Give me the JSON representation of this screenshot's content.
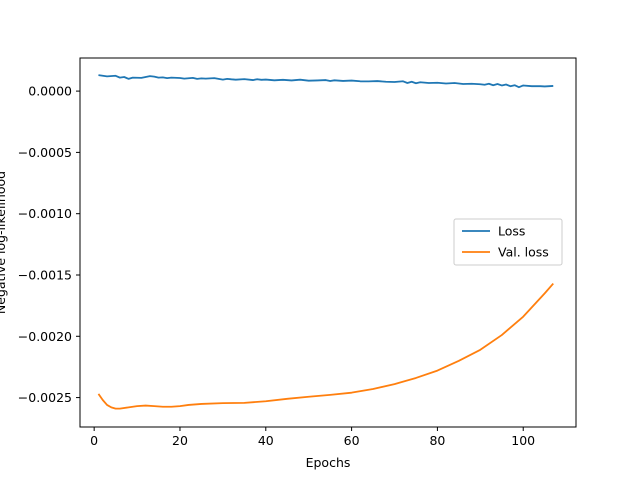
{
  "chart_data": {
    "type": "line",
    "title": "",
    "xlabel": "Epochs",
    "ylabel": "Negative log-likelihood",
    "xlim": [
      -3.3,
      112.3
    ],
    "ylim": [
      -0.00274,
      0.00027
    ],
    "xticks": [
      {
        "value": 0,
        "label": "0"
      },
      {
        "value": 20,
        "label": "20"
      },
      {
        "value": 40,
        "label": "40"
      },
      {
        "value": 60,
        "label": "60"
      },
      {
        "value": 80,
        "label": "80"
      },
      {
        "value": 100,
        "label": "100"
      }
    ],
    "yticks": [
      {
        "value": 0.0,
        "label": "0.0000"
      },
      {
        "value": -0.0005,
        "label": "−0.0005"
      },
      {
        "value": -0.001,
        "label": "−0.0010"
      },
      {
        "value": -0.0015,
        "label": "−0.0015"
      },
      {
        "value": -0.002,
        "label": "−0.0020"
      },
      {
        "value": -0.0025,
        "label": "−0.0025"
      }
    ],
    "grid": false,
    "legend_position": "center-right",
    "series": [
      {
        "name": "Loss",
        "color": "#1f77b4",
        "x": [
          1,
          3,
          5,
          6,
          7,
          8,
          9,
          11,
          13,
          14,
          15,
          16,
          17,
          18,
          20,
          21,
          23,
          24,
          25,
          26,
          28,
          30,
          31,
          32,
          33,
          35,
          37,
          38,
          39,
          40,
          42,
          44,
          46,
          48,
          50,
          52,
          54,
          55,
          56,
          58,
          60,
          62,
          64,
          66,
          68,
          70,
          72,
          73,
          74,
          75,
          76,
          78,
          80,
          82,
          84,
          86,
          88,
          90,
          91,
          92,
          93,
          94,
          95,
          96,
          97,
          98,
          99,
          100,
          102,
          104,
          105,
          107
        ],
        "y": [
          0.00013,
          0.00012,
          0.000125,
          0.00011,
          0.000115,
          0.0001,
          0.00011,
          0.000108,
          0.000122,
          0.000118,
          0.00011,
          0.000112,
          0.000106,
          0.00011,
          0.000107,
          0.000102,
          0.000108,
          0.0001,
          0.000104,
          0.000102,
          0.000106,
          9.4e-05,
          0.0001,
          9.6e-05,
          9.3e-05,
          9.8e-05,
          9e-05,
          9.7e-05,
          9.2e-05,
          9.4e-05,
          8.8e-05,
          9.2e-05,
          8.7e-05,
          9.3e-05,
          8.5e-05,
          8.7e-05,
          9e-05,
          8.2e-05,
          8.8e-05,
          8.3e-05,
          8.6e-05,
          8e-05,
          7.9e-05,
          8.2e-05,
          7.6e-05,
          7.4e-05,
          8e-05,
          6.6e-05,
          7.6e-05,
          6.4e-05,
          7.2e-05,
          6.6e-05,
          6.8e-05,
          6.2e-05,
          6.6e-05,
          5.8e-05,
          6e-05,
          5.6e-05,
          5.2e-05,
          6e-05,
          4.8e-05,
          5.8e-05,
          4.6e-05,
          5.4e-05,
          4e-05,
          4.8e-05,
          3.2e-05,
          4.6e-05,
          4e-05,
          4e-05,
          3.8e-05,
          4.2e-05
        ]
      },
      {
        "name": "Val. loss",
        "color": "#ff7f0e",
        "x": [
          1,
          2,
          3,
          4,
          5,
          6,
          8,
          10,
          12,
          14,
          16,
          18,
          20,
          22,
          25,
          30,
          35,
          40,
          45,
          50,
          55,
          60,
          65,
          70,
          75,
          80,
          85,
          90,
          95,
          100,
          105,
          107
        ],
        "y": [
          -0.00247,
          -0.00252,
          -0.00256,
          -0.00258,
          -0.00259,
          -0.00259,
          -0.00258,
          -0.00257,
          -0.002565,
          -0.00257,
          -0.002575,
          -0.002575,
          -0.00257,
          -0.00256,
          -0.002552,
          -0.002545,
          -0.002543,
          -0.00253,
          -0.00251,
          -0.002493,
          -0.002478,
          -0.00246,
          -0.00243,
          -0.00239,
          -0.00234,
          -0.00228,
          -0.0022,
          -0.00211,
          -0.00199,
          -0.00184,
          -0.00165,
          -0.00157
        ]
      }
    ]
  }
}
